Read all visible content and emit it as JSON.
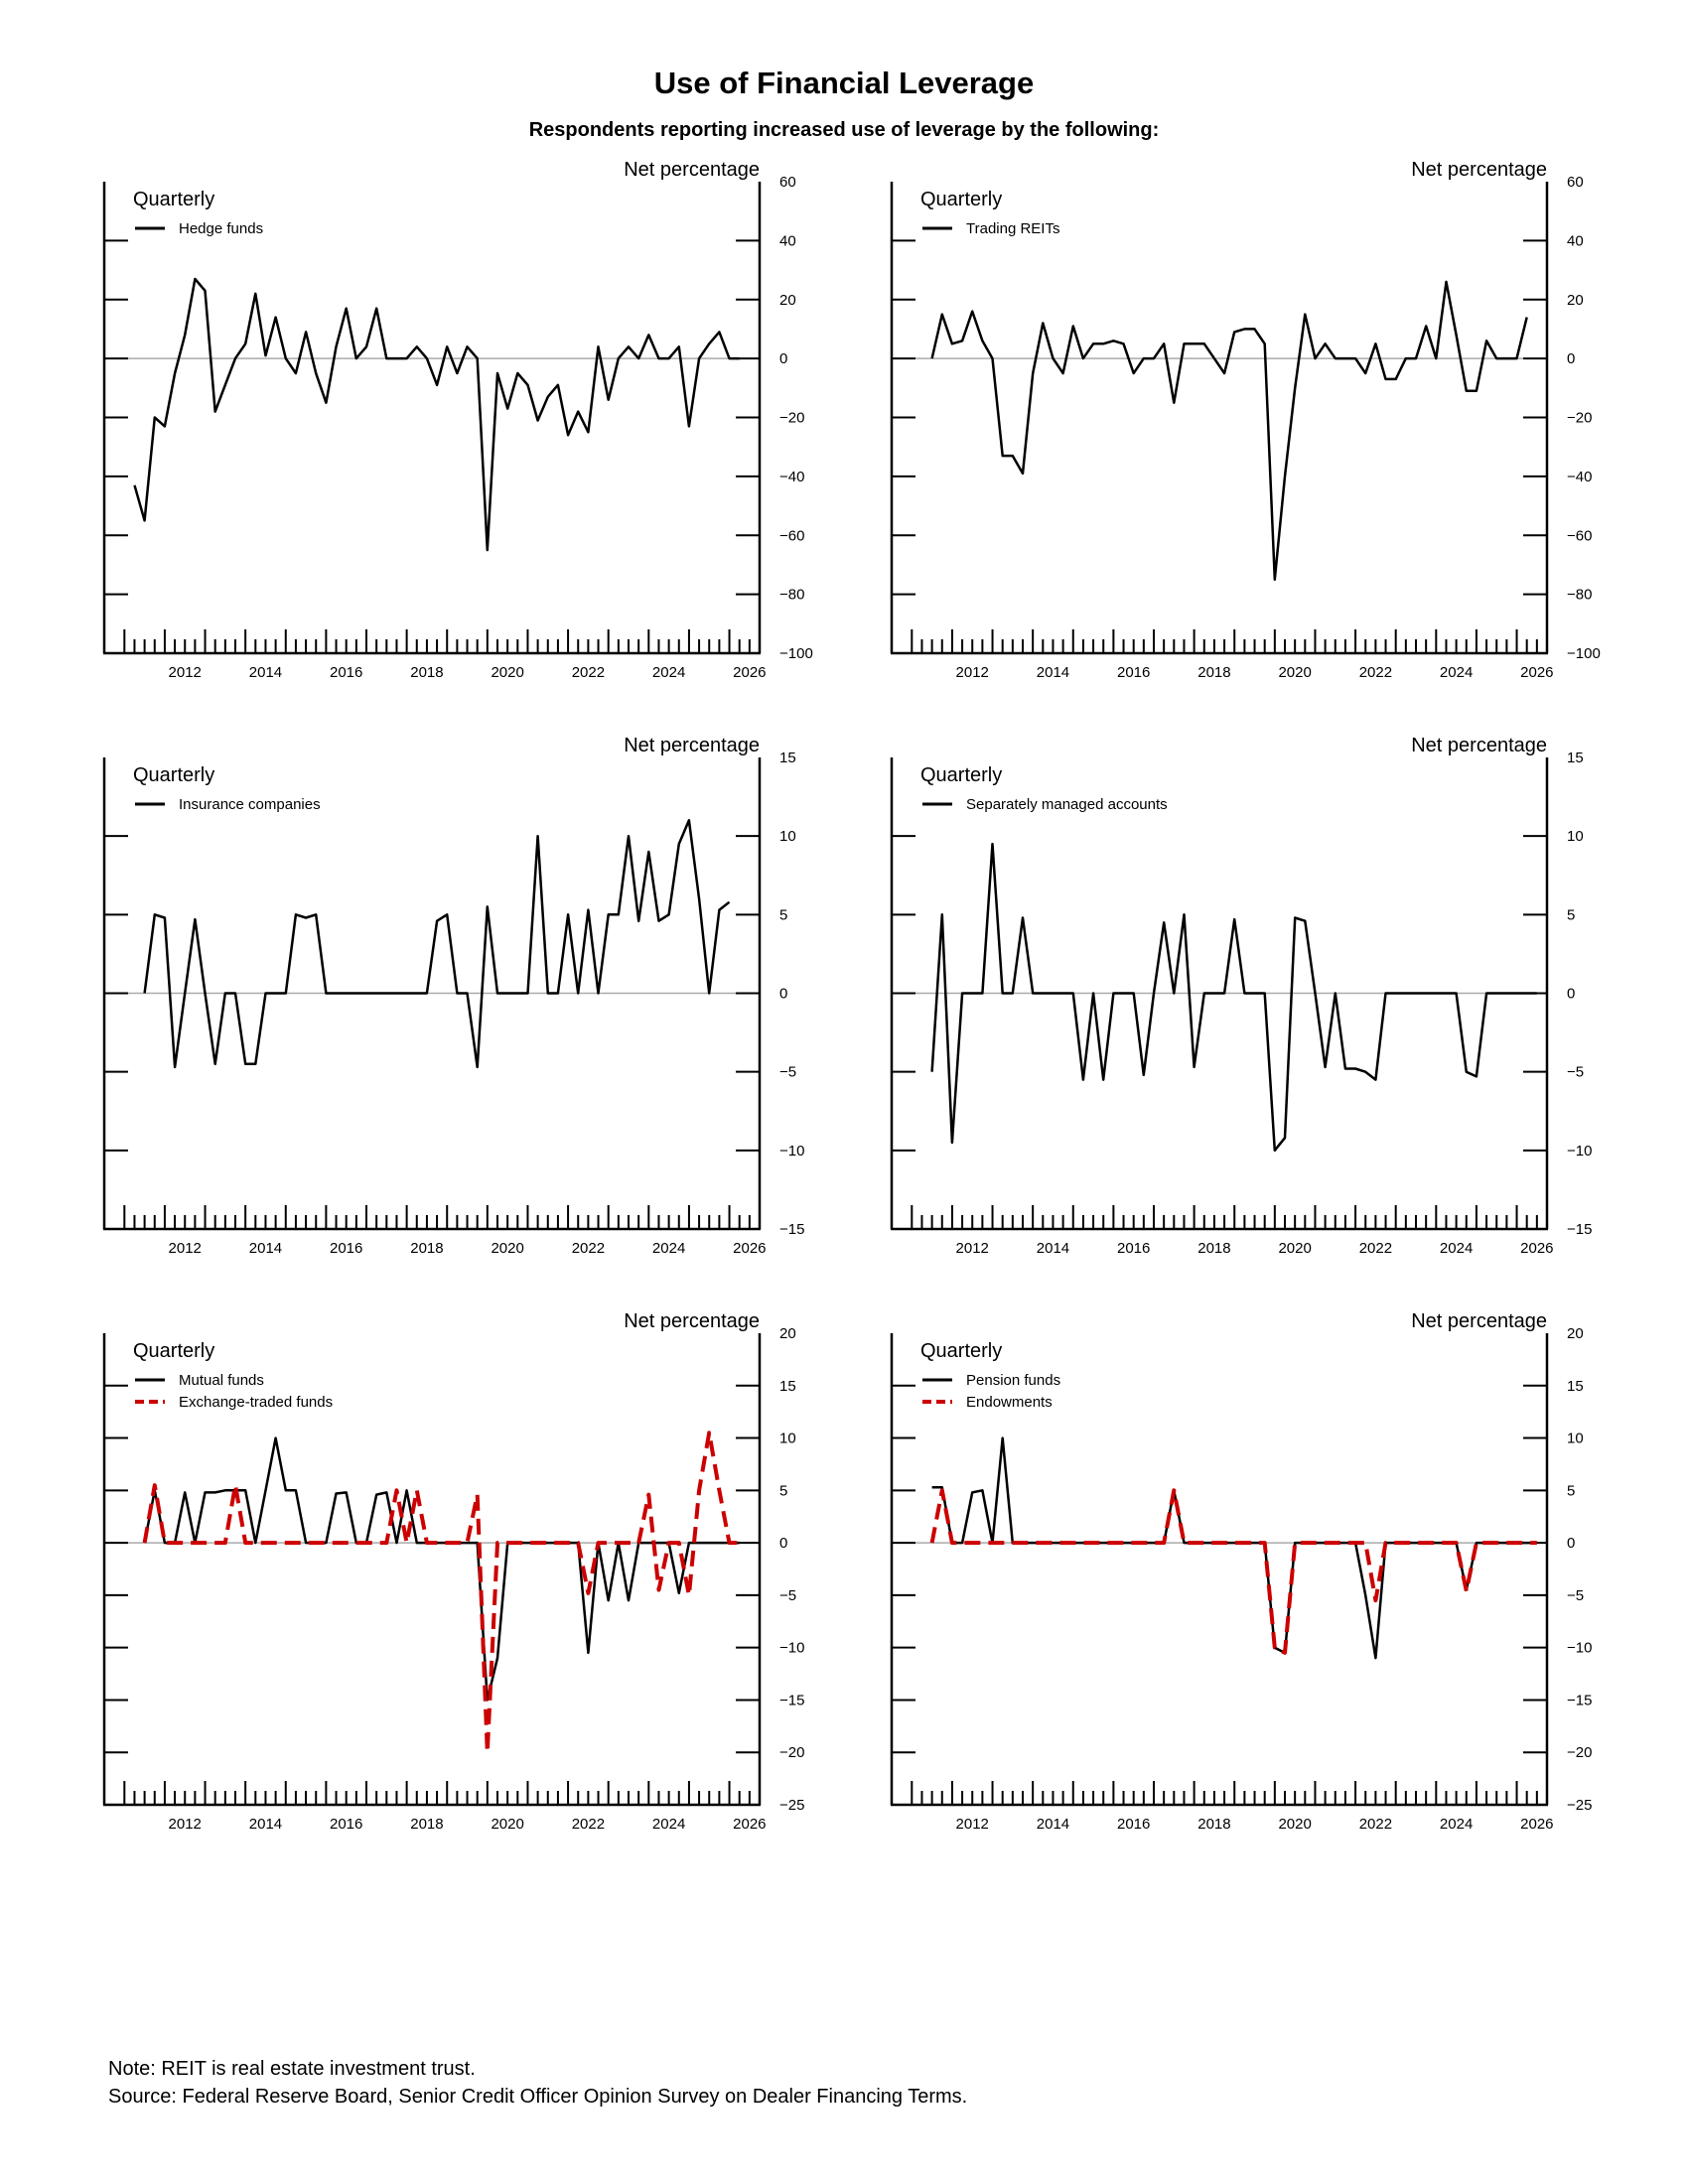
{
  "title": "Use of Financial Leverage",
  "subtitle": "Respondents reporting increased use of leverage by the following:",
  "colors": {
    "black": "#000000",
    "red": "#cc0000",
    "zero_line": "#aaaaaa"
  },
  "notes": {
    "note": "Note:  REIT is real estate investment trust.",
    "source": "Source:  Federal Reserve Board, Senior Credit Officer Opinion Survey on Dealer Financing Terms."
  },
  "chart_data": [
    {
      "type": "line",
      "frequency_label": "Quarterly",
      "ylabel": "Net percentage",
      "ylim": [
        -100,
        60
      ],
      "yticks": [
        -100,
        -80,
        -60,
        -40,
        -20,
        0,
        20,
        40,
        60
      ],
      "xlim": [
        2010.5,
        2026.75
      ],
      "xticks": [
        2012,
        2014,
        2016,
        2018,
        2020,
        2022,
        2024,
        2026
      ],
      "zero_line": true,
      "legend_position": "top-left",
      "series": [
        {
          "name": "Hedge funds",
          "color": "#000000",
          "dash": "solid",
          "x0": 2011.25,
          "values": [
            -43,
            -55,
            -20,
            -23,
            -5,
            8,
            27,
            23,
            -18,
            -9,
            0,
            5,
            22,
            1,
            14,
            0,
            -5,
            9,
            -5,
            -15,
            4,
            17,
            0,
            4,
            17,
            0,
            0,
            0,
            4,
            0,
            -9,
            4,
            -5,
            4,
            0,
            -65,
            -5,
            -17,
            -5,
            -9,
            -21,
            -13,
            -9,
            -26,
            -18,
            -25,
            4,
            -14,
            0,
            4,
            0,
            8,
            0,
            0,
            4,
            -23,
            0,
            5,
            9,
            0,
            0
          ]
        }
      ]
    },
    {
      "type": "line",
      "frequency_label": "Quarterly",
      "ylabel": "Net percentage",
      "ylim": [
        -100,
        60
      ],
      "yticks": [
        -100,
        -80,
        -60,
        -40,
        -20,
        0,
        20,
        40,
        60
      ],
      "xlim": [
        2010.5,
        2026.75
      ],
      "xticks": [
        2012,
        2014,
        2016,
        2018,
        2020,
        2022,
        2024,
        2026
      ],
      "zero_line": true,
      "legend_position": "top-left",
      "series": [
        {
          "name": "Trading REITs",
          "color": "#000000",
          "dash": "solid",
          "x0": 2011.5,
          "values": [
            0,
            15,
            5,
            6,
            16,
            6,
            0,
            -33,
            -33,
            -39,
            -5,
            12,
            0,
            -5,
            11,
            0,
            5,
            5,
            6,
            5,
            -5,
            0,
            0,
            5,
            -15,
            5,
            5,
            5,
            0,
            -5,
            9,
            10,
            10,
            5,
            -75,
            -40,
            -10,
            15,
            0,
            5,
            0,
            0,
            0,
            -5,
            5,
            -7,
            -7,
            0,
            0,
            11,
            0,
            26,
            8,
            -11,
            -11,
            6,
            0,
            0,
            0,
            14
          ]
        }
      ]
    },
    {
      "type": "line",
      "frequency_label": "Quarterly",
      "ylabel": "Net percentage",
      "ylim": [
        -15,
        15
      ],
      "yticks": [
        -15,
        -10,
        -5,
        0,
        5,
        10,
        15
      ],
      "xlim": [
        2010.5,
        2026.75
      ],
      "xticks": [
        2012,
        2014,
        2016,
        2018,
        2020,
        2022,
        2024,
        2026
      ],
      "zero_line": true,
      "legend_position": "top-left",
      "series": [
        {
          "name": "Insurance companies",
          "color": "#000000",
          "dash": "solid",
          "x0": 2011.5,
          "values": [
            0,
            5,
            4.8,
            -4.7,
            0,
            4.7,
            0,
            -4.5,
            0,
            0,
            -4.5,
            -4.5,
            0,
            0,
            0,
            5,
            4.8,
            5,
            0,
            0,
            0,
            0,
            0,
            0,
            0,
            0,
            0,
            0,
            0,
            4.6,
            5,
            0,
            0,
            -4.7,
            5.5,
            0,
            0,
            0,
            0,
            10,
            0,
            0,
            5,
            0,
            5.3,
            0,
            5,
            5,
            10,
            4.6,
            9,
            4.6,
            5,
            9.5,
            11,
            6,
            0,
            5.3,
            5.8
          ]
        }
      ]
    },
    {
      "type": "line",
      "frequency_label": "Quarterly",
      "ylabel": "Net percentage",
      "ylim": [
        -15,
        15
      ],
      "yticks": [
        -15,
        -10,
        -5,
        0,
        5,
        10,
        15
      ],
      "xlim": [
        2010.5,
        2026.75
      ],
      "xticks": [
        2012,
        2014,
        2016,
        2018,
        2020,
        2022,
        2024,
        2026
      ],
      "zero_line": true,
      "legend_position": "top-left",
      "series": [
        {
          "name": "Separately managed accounts",
          "color": "#000000",
          "dash": "solid",
          "x0": 2011.5,
          "values": [
            -5,
            5,
            -9.5,
            0,
            0,
            0,
            9.5,
            0,
            0,
            4.8,
            0,
            0,
            0,
            0,
            0,
            -5.5,
            0,
            -5.5,
            0,
            0,
            0,
            -5.2,
            0,
            4.5,
            0,
            5,
            -4.7,
            0,
            0,
            0,
            4.7,
            0,
            0,
            0,
            -10,
            -9.2,
            4.8,
            4.6,
            0,
            -4.7,
            0,
            -4.8,
            -4.8,
            -5,
            -5.5,
            0,
            0,
            0,
            0,
            0,
            0,
            0,
            0,
            -5,
            -5.3,
            0,
            0,
            0,
            0,
            0,
            0
          ]
        }
      ]
    },
    {
      "type": "line",
      "frequency_label": "Quarterly",
      "ylabel": "Net percentage",
      "ylim": [
        -25,
        20
      ],
      "yticks": [
        -25,
        -20,
        -15,
        -10,
        -5,
        0,
        5,
        10,
        15,
        20
      ],
      "xlim": [
        2010.5,
        2026.75
      ],
      "xticks": [
        2012,
        2014,
        2016,
        2018,
        2020,
        2022,
        2024,
        2026
      ],
      "zero_line": true,
      "legend_position": "top-left",
      "series": [
        {
          "name": "Mutual funds",
          "color": "#000000",
          "dash": "solid",
          "x0": 2011.5,
          "values": [
            0,
            5,
            0,
            0,
            4.8,
            0,
            4.8,
            4.8,
            5,
            5,
            5,
            0,
            5,
            10,
            5,
            5,
            0,
            0,
            0,
            4.7,
            4.8,
            0,
            0,
            4.6,
            4.8,
            0,
            5,
            0,
            0,
            0,
            0,
            0,
            0,
            0,
            -15,
            -11,
            0,
            0,
            0,
            0,
            0,
            0,
            0,
            0,
            -10.5,
            0,
            -5.5,
            0,
            -5.5,
            0,
            0,
            0,
            0,
            -4.8,
            0,
            0,
            0,
            0,
            0,
            0
          ]
        },
        {
          "name": "Exchange-traded funds",
          "color": "#cc0000",
          "dash": "dashed",
          "x0": 2011.5,
          "values": [
            0,
            5.5,
            0,
            0,
            0,
            0,
            0,
            0,
            0,
            5.5,
            0,
            0,
            0,
            0,
            0,
            0,
            0,
            0,
            0,
            0,
            0,
            0,
            0,
            0,
            0,
            5,
            0,
            5,
            0,
            0,
            0,
            0,
            0,
            4.6,
            -20,
            0,
            0,
            0,
            0,
            0,
            0,
            0,
            0,
            0,
            -4.8,
            0,
            0,
            0,
            0,
            0,
            4.6,
            -4.5,
            0,
            0,
            -5,
            5,
            10.5,
            5,
            0,
            0
          ]
        }
      ]
    },
    {
      "type": "line",
      "frequency_label": "Quarterly",
      "ylabel": "Net percentage",
      "ylim": [
        -25,
        20
      ],
      "yticks": [
        -25,
        -20,
        -15,
        -10,
        -5,
        0,
        5,
        10,
        15,
        20
      ],
      "xlim": [
        2010.5,
        2026.75
      ],
      "xticks": [
        2012,
        2014,
        2016,
        2018,
        2020,
        2022,
        2024,
        2026
      ],
      "zero_line": true,
      "legend_position": "top-left",
      "series": [
        {
          "name": "Pension funds",
          "color": "#000000",
          "dash": "solid",
          "x0": 2011.5,
          "values": [
            5.3,
            5.3,
            0,
            0,
            4.8,
            5,
            0,
            10,
            0,
            0,
            0,
            0,
            0,
            0,
            0,
            0,
            0,
            0,
            0,
            0,
            0,
            0,
            0,
            0,
            5,
            0,
            0,
            0,
            0,
            0,
            0,
            0,
            0,
            0,
            -10,
            -10.5,
            0,
            0,
            0,
            0,
            0,
            0,
            0,
            -5,
            -11,
            0,
            0,
            0,
            0,
            0,
            0,
            0,
            0,
            -4.5,
            0,
            0,
            0,
            0,
            0,
            0,
            0
          ]
        },
        {
          "name": "Endowments",
          "color": "#cc0000",
          "dash": "dashed",
          "x0": 2011.5,
          "values": [
            0,
            5,
            0,
            0,
            0,
            0,
            0,
            0,
            0,
            0,
            0,
            0,
            0,
            0,
            0,
            0,
            0,
            0,
            0,
            0,
            0,
            0,
            0,
            0,
            5,
            0,
            0,
            0,
            0,
            0,
            0,
            0,
            0,
            0,
            -10,
            -10.5,
            0,
            0,
            0,
            0,
            0,
            0,
            0,
            0,
            -5.5,
            0,
            0,
            0,
            0,
            0,
            0,
            0,
            0,
            -4.6,
            0,
            0,
            0,
            0,
            0,
            0,
            0
          ]
        }
      ]
    }
  ]
}
